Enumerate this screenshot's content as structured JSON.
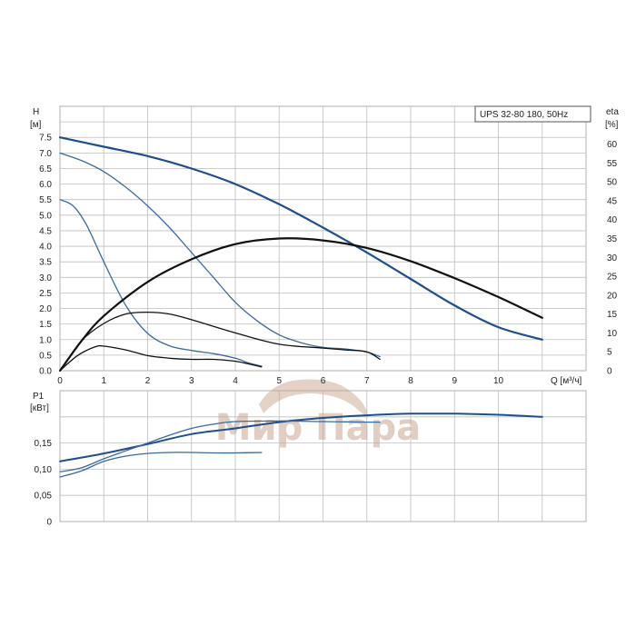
{
  "chart_data": [
    {
      "type": "line",
      "title": "UPS 32-80 180, 50Hz",
      "xlabel": "Q [м³/ч]",
      "ylabel": "H [м]",
      "y2label": "eta [%]",
      "ylabel_parts": [
        "H",
        "[м]"
      ],
      "y2label_parts": [
        "eta",
        "[%]"
      ],
      "xlim": [
        0,
        11
      ],
      "ylim": [
        0,
        8.5
      ],
      "y2lim": [
        0,
        70
      ],
      "xticks": [
        "0",
        "1",
        "2",
        "3",
        "4",
        "5",
        "6",
        "7",
        "8",
        "9",
        "10"
      ],
      "yticks": [
        "0.0",
        "0.5",
        "1.0",
        "1.5",
        "2.0",
        "2.5",
        "3.0",
        "3.5",
        "4.0",
        "4.5",
        "5.0",
        "5.5",
        "6.0",
        "6.5",
        "7.0",
        "7.5"
      ],
      "y2ticks": [
        "0",
        "5",
        "10",
        "15",
        "20",
        "25",
        "30",
        "35",
        "40",
        "45",
        "50",
        "55",
        "60"
      ],
      "grid": true,
      "legend": "top-right",
      "series": [
        {
          "color": "#1f4e8c",
          "width": 2.2,
          "axis": "H",
          "points": [
            [
              0,
              7.5
            ],
            [
              1,
              7.2
            ],
            [
              2,
              6.9
            ],
            [
              3,
              6.5
            ],
            [
              4,
              6.0
            ],
            [
              5,
              5.35
            ],
            [
              6,
              4.6
            ],
            [
              7,
              3.8
            ],
            [
              8,
              2.95
            ],
            [
              9,
              2.1
            ],
            [
              10,
              1.4
            ],
            [
              11,
              1.0
            ]
          ]
        },
        {
          "color": "#3a6a9c",
          "width": 1.3,
          "axis": "H",
          "points": [
            [
              0,
              7.0
            ],
            [
              0.5,
              6.75
            ],
            [
              1,
              6.4
            ],
            [
              1.5,
              5.9
            ],
            [
              2,
              5.3
            ],
            [
              2.5,
              4.6
            ],
            [
              3,
              3.8
            ],
            [
              3.5,
              3.0
            ],
            [
              4,
              2.2
            ],
            [
              4.5,
              1.6
            ],
            [
              5,
              1.15
            ],
            [
              5.5,
              0.9
            ],
            [
              6,
              0.75
            ],
            [
              6.5,
              0.7
            ],
            [
              7,
              0.6
            ],
            [
              7.3,
              0.45
            ]
          ]
        },
        {
          "color": "#3a6a9c",
          "width": 1.3,
          "axis": "H",
          "points": [
            [
              0,
              5.5
            ],
            [
              0.3,
              5.3
            ],
            [
              0.6,
              4.7
            ],
            [
              1,
              3.5
            ],
            [
              1.5,
              2.1
            ],
            [
              2,
              1.2
            ],
            [
              2.5,
              0.8
            ],
            [
              3,
              0.65
            ],
            [
              3.5,
              0.55
            ],
            [
              4,
              0.4
            ],
            [
              4.3,
              0.25
            ],
            [
              4.6,
              0.15
            ]
          ]
        },
        {
          "color": "#111111",
          "width": 2.2,
          "axis": "eta",
          "points": [
            [
              0,
              0
            ],
            [
              0.5,
              8
            ],
            [
              1,
              14.5
            ],
            [
              2,
              23.5
            ],
            [
              3,
              29.5
            ],
            [
              4,
              33.5
            ],
            [
              5,
              35
            ],
            [
              6,
              34.5
            ],
            [
              7,
              32.5
            ],
            [
              8,
              29
            ],
            [
              9,
              24.5
            ],
            [
              10,
              19.5
            ],
            [
              11,
              14
            ]
          ]
        },
        {
          "color": "#111111",
          "width": 1.3,
          "axis": "eta",
          "points": [
            [
              0,
              0
            ],
            [
              0.5,
              8
            ],
            [
              1,
              12.5
            ],
            [
              1.5,
              15
            ],
            [
              2,
              15.5
            ],
            [
              2.5,
              15
            ],
            [
              3,
              13.5
            ],
            [
              4,
              10
            ],
            [
              5,
              7
            ],
            [
              6,
              6
            ],
            [
              6.5,
              5.5
            ],
            [
              7,
              5
            ],
            [
              7.3,
              3
            ]
          ]
        },
        {
          "color": "#111111",
          "width": 1.3,
          "axis": "eta",
          "points": [
            [
              0,
              0
            ],
            [
              0.4,
              4
            ],
            [
              0.8,
              6.3
            ],
            [
              1,
              6.5
            ],
            [
              1.5,
              5.5
            ],
            [
              2,
              4
            ],
            [
              2.5,
              3.3
            ],
            [
              3,
              3
            ],
            [
              3.5,
              3
            ],
            [
              4,
              2.5
            ],
            [
              4.3,
              1.8
            ],
            [
              4.6,
              1
            ]
          ]
        }
      ]
    },
    {
      "type": "line",
      "xlabel": "",
      "ylabel": "P1 [кВт]",
      "ylabel_parts": [
        "P1",
        "[кВт]"
      ],
      "xlim": [
        0,
        11
      ],
      "ylim": [
        0,
        0.25
      ],
      "yticks": [
        "0",
        "0,05",
        "0,10",
        "0,15"
      ],
      "grid": true,
      "series": [
        {
          "color": "#1f4e8c",
          "width": 2.0,
          "points": [
            [
              0,
              0.115
            ],
            [
              1,
              0.13
            ],
            [
              2,
              0.148
            ],
            [
              3,
              0.167
            ],
            [
              4,
              0.178
            ],
            [
              5,
              0.19
            ],
            [
              6,
              0.198
            ],
            [
              7,
              0.203
            ],
            [
              8,
              0.206
            ],
            [
              9,
              0.206
            ],
            [
              10,
              0.204
            ],
            [
              11,
              0.2
            ]
          ]
        },
        {
          "color": "#3a6a9c",
          "width": 1.3,
          "points": [
            [
              0,
              0.095
            ],
            [
              0.5,
              0.103
            ],
            [
              1,
              0.12
            ],
            [
              1.5,
              0.135
            ],
            [
              2,
              0.15
            ],
            [
              2.5,
              0.165
            ],
            [
              3,
              0.178
            ],
            [
              3.5,
              0.186
            ],
            [
              4,
              0.191
            ],
            [
              5,
              0.192
            ],
            [
              6,
              0.191
            ],
            [
              7,
              0.19
            ],
            [
              7.3,
              0.19
            ]
          ]
        },
        {
          "color": "#3a6a9c",
          "width": 1.3,
          "points": [
            [
              0,
              0.085
            ],
            [
              0.5,
              0.097
            ],
            [
              1,
              0.115
            ],
            [
              1.5,
              0.125
            ],
            [
              2,
              0.13
            ],
            [
              2.5,
              0.132
            ],
            [
              3,
              0.132
            ],
            [
              3.5,
              0.131
            ],
            [
              4,
              0.131
            ],
            [
              4.6,
              0.132
            ]
          ]
        }
      ]
    }
  ],
  "watermark": {
    "text": "Мир Пара",
    "color": "#c9a690"
  }
}
